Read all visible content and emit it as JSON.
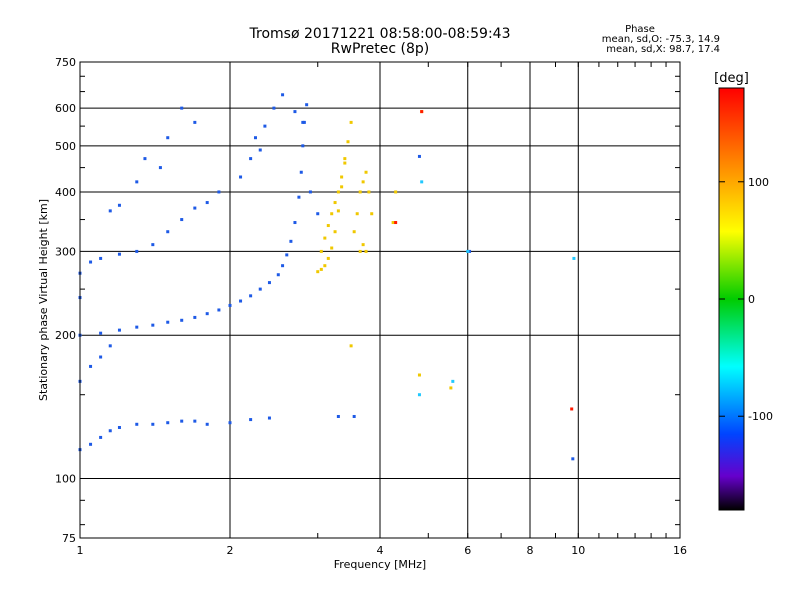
{
  "chart_data": {
    "type": "scatter",
    "title": "Tromsø 20171221 08:58:00-08:59:43",
    "subtitle": "RwPretec (8p)",
    "xlabel": "Frequency [MHz]",
    "ylabel": "Stationary phase Virtual Height [km]",
    "x_scale": "log",
    "y_scale": "log",
    "xlim": [
      1,
      16
    ],
    "ylim": [
      75,
      750
    ],
    "x_ticks": [
      1,
      2,
      4,
      6,
      8,
      10,
      16
    ],
    "y_ticks": [
      75,
      100,
      200,
      300,
      400,
      500,
      600,
      750
    ],
    "grid": true,
    "colorbar": {
      "label": "[deg]",
      "range": [
        -180,
        180
      ],
      "ticks": [
        100,
        0,
        -100
      ],
      "colormap": "rainbow (black → purple → blue → cyan → green → yellow → red)"
    },
    "stats": {
      "title": "Phase",
      "line1": "mean, sd,O: -75.3, 14.9",
      "line2": "mean, sd,X:  98.7, 17.4"
    },
    "series": [
      {
        "name": "",
        "color": "#1e5ae6",
        "mean_phase": -75.3,
        "points": [
          [
            1.0,
            115
          ],
          [
            1.05,
            118
          ],
          [
            1.1,
            122
          ],
          [
            1.15,
            126
          ],
          [
            1.2,
            128
          ],
          [
            1.3,
            130
          ],
          [
            1.4,
            130
          ],
          [
            1.5,
            131
          ],
          [
            1.6,
            132
          ],
          [
            1.7,
            132
          ],
          [
            1.8,
            130
          ],
          [
            2.0,
            131
          ],
          [
            2.2,
            133
          ],
          [
            2.4,
            134
          ],
          [
            1.0,
            200
          ],
          [
            1.1,
            202
          ],
          [
            1.2,
            205
          ],
          [
            1.3,
            208
          ],
          [
            1.4,
            210
          ],
          [
            1.5,
            213
          ],
          [
            1.6,
            215
          ],
          [
            1.7,
            218
          ],
          [
            1.8,
            222
          ],
          [
            1.9,
            226
          ],
          [
            2.0,
            231
          ],
          [
            2.1,
            236
          ],
          [
            2.2,
            242
          ],
          [
            2.3,
            250
          ],
          [
            2.4,
            258
          ],
          [
            2.5,
            268
          ],
          [
            2.55,
            280
          ],
          [
            2.6,
            295
          ],
          [
            2.65,
            315
          ],
          [
            2.7,
            345
          ],
          [
            2.75,
            390
          ],
          [
            2.78,
            440
          ],
          [
            2.8,
            500
          ],
          [
            2.82,
            560
          ],
          [
            2.85,
            610
          ],
          [
            1.0,
            160
          ],
          [
            1.05,
            172
          ],
          [
            1.1,
            180
          ],
          [
            1.15,
            190
          ],
          [
            1.0,
            240
          ],
          [
            1.0,
            270
          ],
          [
            1.05,
            285
          ],
          [
            1.1,
            290
          ],
          [
            1.2,
            296
          ],
          [
            1.3,
            300
          ],
          [
            1.4,
            310
          ],
          [
            1.5,
            330
          ],
          [
            1.6,
            350
          ],
          [
            1.7,
            370
          ],
          [
            1.8,
            380
          ],
          [
            1.9,
            400
          ],
          [
            1.15,
            365
          ],
          [
            1.2,
            375
          ],
          [
            1.3,
            420
          ],
          [
            1.45,
            450
          ],
          [
            1.5,
            520
          ],
          [
            1.6,
            600
          ],
          [
            1.7,
            560
          ],
          [
            1.35,
            470
          ],
          [
            2.1,
            430
          ],
          [
            2.2,
            470
          ],
          [
            2.25,
            520
          ],
          [
            2.3,
            490
          ],
          [
            2.35,
            550
          ],
          [
            2.45,
            600
          ],
          [
            2.55,
            640
          ],
          [
            2.7,
            590
          ],
          [
            2.8,
            560
          ],
          [
            2.9,
            400
          ],
          [
            3.0,
            360
          ],
          [
            3.3,
            135
          ],
          [
            3.55,
            135
          ],
          [
            4.8,
            475
          ],
          [
            6.05,
            300
          ],
          [
            9.75,
            110
          ]
        ]
      },
      {
        "name": "",
        "color": "#f0c800",
        "mean_phase": 98.7,
        "points": [
          [
            3.0,
            272
          ],
          [
            3.05,
            275
          ],
          [
            3.1,
            280
          ],
          [
            3.15,
            290
          ],
          [
            3.2,
            305
          ],
          [
            3.25,
            330
          ],
          [
            3.3,
            365
          ],
          [
            3.35,
            410
          ],
          [
            3.4,
            460
          ],
          [
            3.45,
            510
          ],
          [
            3.5,
            560
          ],
          [
            3.05,
            300
          ],
          [
            3.1,
            320
          ],
          [
            3.15,
            340
          ],
          [
            3.2,
            360
          ],
          [
            3.25,
            380
          ],
          [
            3.3,
            400
          ],
          [
            3.35,
            430
          ],
          [
            3.4,
            470
          ],
          [
            3.55,
            330
          ],
          [
            3.6,
            360
          ],
          [
            3.65,
            400
          ],
          [
            3.7,
            420
          ],
          [
            3.75,
            440
          ],
          [
            3.8,
            400
          ],
          [
            3.85,
            360
          ],
          [
            3.7,
            310
          ],
          [
            3.65,
            300
          ],
          [
            3.75,
            300
          ],
          [
            3.5,
            190
          ],
          [
            4.25,
            345
          ],
          [
            4.3,
            400
          ],
          [
            4.8,
            165
          ],
          [
            4.85,
            590
          ],
          [
            5.55,
            155
          ]
        ]
      },
      {
        "name": "",
        "color": "#ff1a00",
        "mean_phase": 150,
        "points": [
          [
            4.85,
            590
          ],
          [
            9.7,
            140
          ],
          [
            4.3,
            345
          ]
        ]
      },
      {
        "name": "",
        "color": "#20c8ff",
        "mean_phase": -30,
        "points": [
          [
            4.8,
            150
          ],
          [
            4.85,
            420
          ],
          [
            6.0,
            300
          ],
          [
            9.8,
            290
          ],
          [
            5.6,
            160
          ]
        ]
      }
    ]
  }
}
